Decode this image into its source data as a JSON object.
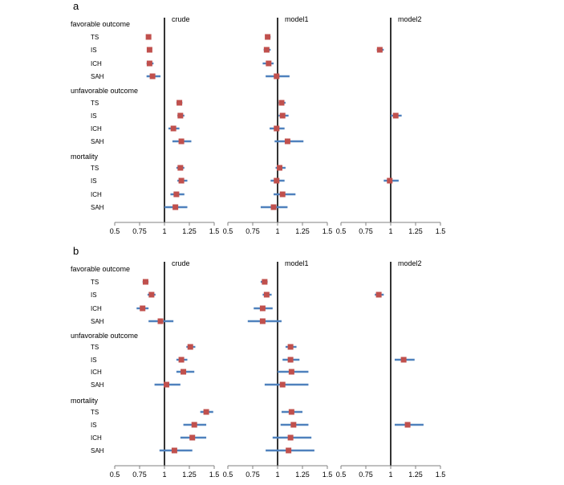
{
  "chart_data": [
    {
      "type": "forest",
      "panel_label": "a",
      "xlim": [
        0.5,
        1.5
      ],
      "ticks": [
        0.5,
        0.75,
        1,
        1.25,
        1.5
      ],
      "tick_labels": [
        "0.5",
        "0.75",
        "1",
        "1.25",
        "1.5"
      ],
      "reference_line": 1,
      "groups": [
        {
          "label": "favorable outcome",
          "rows": [
            "TS",
            "IS",
            "ICH",
            "SAH"
          ]
        },
        {
          "label": "unfavorable outcome",
          "rows": [
            "TS",
            "IS",
            "ICH",
            "SAH"
          ]
        },
        {
          "label": "mortality",
          "rows": [
            "TS",
            "IS",
            "ICH",
            "SAH"
          ]
        }
      ],
      "models": [
        {
          "name": "crude",
          "estimates": [
            [
              [
                0.84,
                0.82,
                0.86
              ],
              [
                0.85,
                0.83,
                0.87
              ],
              [
                0.85,
                0.82,
                0.89
              ],
              [
                0.88,
                0.82,
                0.96
              ]
            ],
            [
              [
                1.15,
                1.12,
                1.18
              ],
              [
                1.16,
                1.13,
                1.2
              ],
              [
                1.09,
                1.04,
                1.15
              ],
              [
                1.17,
                1.08,
                1.27
              ]
            ],
            [
              [
                1.16,
                1.12,
                1.2
              ],
              [
                1.17,
                1.13,
                1.23
              ],
              [
                1.12,
                1.06,
                1.2
              ],
              [
                1.11,
                1.0,
                1.23
              ]
            ]
          ]
        },
        {
          "name": "model1",
          "estimates": [
            [
              [
                0.9,
                0.88,
                0.93
              ],
              [
                0.89,
                0.86,
                0.93
              ],
              [
                0.91,
                0.85,
                0.96
              ],
              [
                0.99,
                0.88,
                1.12
              ]
            ],
            [
              [
                1.04,
                1.01,
                1.08
              ],
              [
                1.05,
                1.01,
                1.11
              ],
              [
                0.99,
                0.92,
                1.07
              ],
              [
                1.1,
                0.97,
                1.26
              ]
            ],
            [
              [
                1.02,
                0.98,
                1.08
              ],
              [
                0.99,
                0.93,
                1.07
              ],
              [
                1.05,
                0.96,
                1.18
              ],
              [
                0.96,
                0.83,
                1.1
              ]
            ]
          ]
        },
        {
          "name": "model2",
          "estimates": [
            [
              null,
              [
                0.89,
                0.86,
                0.93
              ],
              null,
              null
            ],
            [
              null,
              [
                1.05,
                1.0,
                1.11
              ],
              null,
              null
            ],
            [
              null,
              [
                0.99,
                0.93,
                1.08
              ],
              null,
              null
            ]
          ]
        }
      ]
    },
    {
      "type": "forest",
      "panel_label": "b",
      "xlim": [
        0.5,
        1.5
      ],
      "ticks": [
        0.5,
        0.75,
        1,
        1.25,
        1.5
      ],
      "tick_labels": [
        "0.5",
        "0.75",
        "1",
        "1.25",
        "1.5"
      ],
      "reference_line": 1,
      "groups": [
        {
          "label": "favorable outcome",
          "rows": [
            "TS",
            "IS",
            "ICH",
            "SAH"
          ]
        },
        {
          "label": "unfavorable outcome",
          "rows": [
            "TS",
            "IS",
            "ICH",
            "SAH"
          ]
        },
        {
          "label": "mortality",
          "rows": [
            "TS",
            "IS",
            "ICH",
            "SAH"
          ]
        }
      ],
      "models": [
        {
          "name": "crude",
          "estimates": [
            [
              [
                0.81,
                0.78,
                0.84
              ],
              [
                0.87,
                0.83,
                0.91
              ],
              [
                0.78,
                0.72,
                0.84
              ],
              [
                0.96,
                0.84,
                1.09
              ]
            ],
            [
              [
                1.26,
                1.22,
                1.31
              ],
              [
                1.17,
                1.12,
                1.23
              ],
              [
                1.19,
                1.12,
                1.3
              ],
              [
                1.02,
                0.9,
                1.16
              ]
            ],
            [
              [
                1.42,
                1.36,
                1.49
              ],
              [
                1.3,
                1.19,
                1.42
              ],
              [
                1.28,
                1.16,
                1.42
              ],
              [
                1.1,
                0.95,
                1.28
              ]
            ]
          ]
        },
        {
          "name": "model1",
          "estimates": [
            [
              [
                0.87,
                0.83,
                0.9
              ],
              [
                0.89,
                0.85,
                0.94
              ],
              [
                0.85,
                0.76,
                0.95
              ],
              [
                0.85,
                0.7,
                1.04
              ]
            ],
            [
              [
                1.13,
                1.08,
                1.19
              ],
              [
                1.13,
                1.05,
                1.22
              ],
              [
                1.14,
                1.0,
                1.31
              ],
              [
                1.05,
                0.87,
                1.31
              ]
            ],
            [
              [
                1.14,
                1.04,
                1.25
              ],
              [
                1.16,
                1.03,
                1.31
              ],
              [
                1.13,
                0.95,
                1.34
              ],
              [
                1.11,
                0.88,
                1.37
              ]
            ]
          ]
        },
        {
          "name": "model2",
          "estimates": [
            [
              null,
              [
                0.88,
                0.84,
                0.93
              ],
              null,
              null
            ],
            [
              null,
              [
                1.13,
                1.04,
                1.24
              ],
              null,
              null
            ],
            [
              null,
              [
                1.17,
                1.04,
                1.33
              ],
              null,
              null
            ]
          ]
        }
      ]
    }
  ],
  "colors": {
    "marker": "#c0504d",
    "ci_line": "#4f81bd",
    "reference_line": "#000000",
    "axis": "#808080"
  }
}
